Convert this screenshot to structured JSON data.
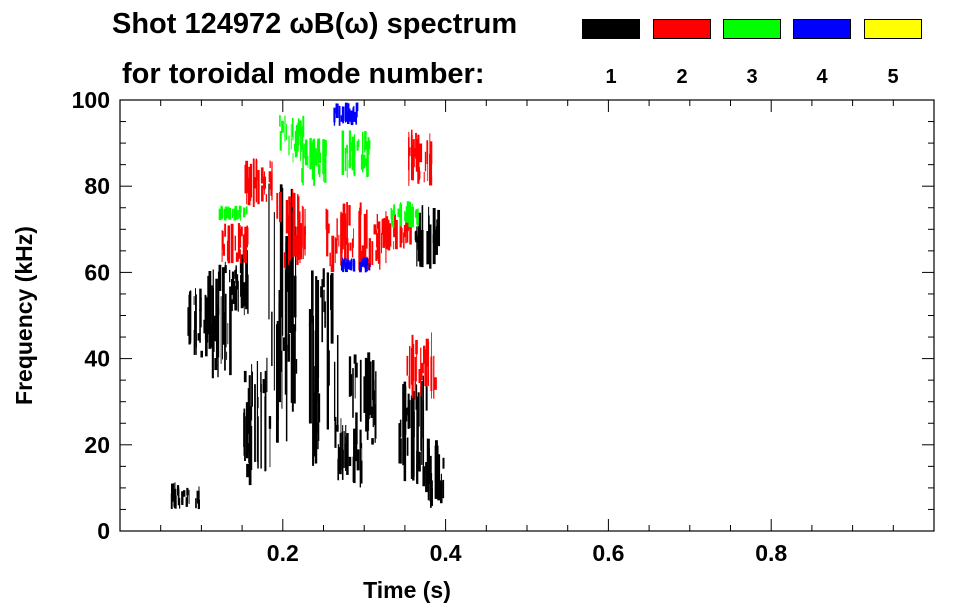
{
  "title_line1": "Shot 124972 ωB(ω) spectrum",
  "title_line2": "for toroidal mode number:",
  "legend": [
    {
      "label": "1",
      "color": "#000000"
    },
    {
      "label": "2",
      "color": "#ff0000"
    },
    {
      "label": "3",
      "color": "#00ff00"
    },
    {
      "label": "4",
      "color": "#0000ff"
    },
    {
      "label": "5",
      "color": "#ffff00"
    }
  ],
  "chart_data": {
    "type": "scatter",
    "title": "Shot 124972 ωB(ω) spectrum for toroidal mode number",
    "xlabel": "Time (s)",
    "ylabel": "Frequency (kHz)",
    "xlim": [
      0.0,
      1.0
    ],
    "ylim": [
      0,
      100
    ],
    "x_ticks": [
      0.2,
      0.4,
      0.6,
      0.8
    ],
    "x_tick_labels": [
      "0.2",
      "0.4",
      "0.6",
      "0.8"
    ],
    "y_ticks": [
      0,
      20,
      40,
      60,
      80,
      100
    ],
    "y_tick_labels": [
      "0",
      "20",
      "40",
      "60",
      "80",
      "100"
    ],
    "series": [
      {
        "name": "1",
        "color": "#000000",
        "regions": [
          [
            0.08,
            5,
            10
          ],
          [
            0.1,
            40,
            55
          ],
          [
            0.12,
            35,
            60
          ],
          [
            0.14,
            50,
            65
          ],
          [
            0.17,
            10,
            40
          ],
          [
            0.2,
            20,
            80
          ],
          [
            0.25,
            15,
            60
          ],
          [
            0.28,
            10,
            25
          ],
          [
            0.3,
            20,
            40
          ],
          [
            0.36,
            10,
            35
          ],
          [
            0.38,
            5,
            20
          ],
          [
            0.38,
            60,
            75
          ]
        ]
      },
      {
        "name": "2",
        "color": "#ff0000",
        "regions": [
          [
            0.14,
            62,
            70
          ],
          [
            0.17,
            75,
            85
          ],
          [
            0.21,
            60,
            78
          ],
          [
            0.27,
            60,
            75
          ],
          [
            0.31,
            60,
            75
          ],
          [
            0.34,
            65,
            72
          ],
          [
            0.37,
            80,
            92
          ],
          [
            0.37,
            30,
            45
          ]
        ]
      },
      {
        "name": "3",
        "color": "#00ff00",
        "regions": [
          [
            0.14,
            72,
            74
          ],
          [
            0.21,
            85,
            95
          ],
          [
            0.24,
            80,
            90
          ],
          [
            0.29,
            82,
            92
          ],
          [
            0.35,
            70,
            75
          ]
        ]
      },
      {
        "name": "4",
        "color": "#0000ff",
        "regions": [
          [
            0.28,
            94,
            98
          ],
          [
            0.29,
            60,
            62
          ]
        ]
      },
      {
        "name": "5",
        "color": "#ffff00",
        "regions": []
      }
    ]
  }
}
